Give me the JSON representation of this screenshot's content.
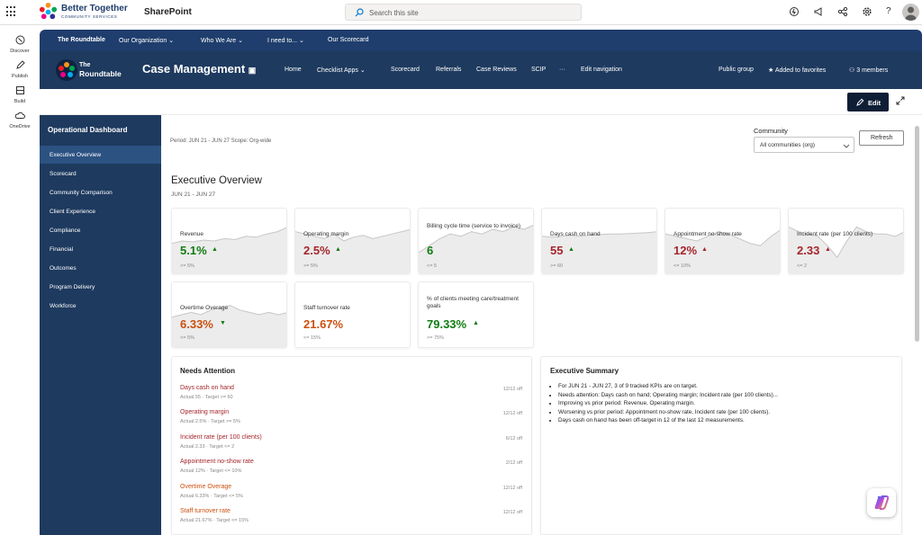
{
  "suite": {
    "brand_name": "Better Together",
    "brand_sub": "COMMUNITY SERVICES",
    "app_name": "SharePoint",
    "search_placeholder": "Search this site"
  },
  "rail": [
    {
      "label": "Discover",
      "icon": "compass-icon"
    },
    {
      "label": "Publish",
      "icon": "pen-icon"
    },
    {
      "label": "Build",
      "icon": "build-icon"
    },
    {
      "label": "OneDrive",
      "icon": "cloud-icon"
    }
  ],
  "hub_nav": [
    "The Roundtable",
    "Our Organization",
    "Who We Are",
    "I need to...",
    "Our Scorecard"
  ],
  "site": {
    "logo_line1": "The",
    "logo_line2": "Roundtable",
    "title": "Case Management",
    "nav": [
      "Home",
      "Checklist Apps",
      "Scorecard",
      "Referrals",
      "Case Reviews",
      "SCIP",
      "···",
      "Edit navigation"
    ],
    "public_group": "Public group",
    "favorites": "Added to favorites",
    "members": "3 members"
  },
  "command": {
    "edit": "Edit"
  },
  "dashboard_nav": {
    "title": "Operational Dashboard",
    "items": [
      "Executive Overview",
      "Scorecard",
      "Community Comparison",
      "Client Experience",
      "Compliance",
      "Financial",
      "Outcomes",
      "Program Delivery",
      "Workforce"
    ],
    "active_index": 0
  },
  "main": {
    "period": "Period: JUN 21 - JUN 27   Scope: Org-wide",
    "community_label": "Community",
    "community_value": "All communities (org)",
    "refresh": "Refresh",
    "title": "Executive Overview",
    "range": "JUN 21 - JUN 27"
  },
  "kpis": [
    {
      "name": "Revenue",
      "value": "5.1%",
      "target": ">= 5%",
      "trend": "up",
      "status": "good",
      "spark": [
        0.55,
        0.5,
        0.52,
        0.48,
        0.5,
        0.45,
        0.47,
        0.4,
        0.42,
        0.35,
        0.3,
        0.2
      ]
    },
    {
      "name": "Operating margin",
      "value": "2.5%",
      "target": ">= 5%",
      "trend": "up",
      "status": "bad",
      "spark": [
        0.3,
        0.35,
        0.4,
        0.45,
        0.35,
        0.5,
        0.42,
        0.38,
        0.45,
        0.4,
        0.35,
        0.3,
        0.25
      ]
    },
    {
      "name": "Billing cycle time (service to invoice)",
      "value": "6",
      "target": "<= 5",
      "trend": "none",
      "status": "good",
      "spark": [
        0.75,
        0.6,
        0.45,
        0.35,
        0.4,
        0.3,
        0.35,
        0.25,
        0.3,
        0.2,
        0.25,
        0.15
      ]
    },
    {
      "name": "Days cash on hand",
      "value": "55",
      "target": ">= 60",
      "trend": "up",
      "status": "bad",
      "spark": [
        0.4,
        0.42,
        0.4,
        0.38,
        0.4,
        0.37,
        0.36,
        0.35,
        0.35,
        0.34,
        0.33,
        0.32,
        0.3
      ]
    },
    {
      "name": "Appointment no-show rate",
      "value": "12%",
      "target": "<= 10%",
      "trend": "up",
      "status": "bad",
      "spark": [
        0.35,
        0.4,
        0.45,
        0.5,
        0.4,
        0.3,
        0.35,
        0.45,
        0.55,
        0.6,
        0.4,
        0.25
      ]
    },
    {
      "name": "Incident rate (per 100 clients)",
      "value": "2.33",
      "target": "<= 2",
      "trend": "up",
      "status": "bad",
      "spark": [
        0.2,
        0.3,
        0.35,
        0.4,
        0.6,
        0.85,
        0.5,
        0.2,
        0.3,
        0.35,
        0.35,
        0.4,
        0.3
      ]
    },
    {
      "name": "Overtime Overage",
      "value": "6.33%",
      "target": "<= 5%",
      "trend": "down",
      "status": "warn",
      "spark": [
        0.55,
        0.5,
        0.45,
        0.5,
        0.4,
        0.35,
        0.3,
        0.4,
        0.45,
        0.5,
        0.45,
        0.5,
        0.45
      ]
    },
    {
      "name": "Staff turnover rate",
      "value": "21.67%",
      "target": "<= 15%",
      "trend": "none",
      "status": "warn",
      "spark": []
    },
    {
      "name": "% of clients meeting care/treatment goals",
      "value": "79.33%",
      "target": ">= 75%",
      "trend": "up",
      "status": "good",
      "spark": []
    }
  ],
  "needs_attention": {
    "title": "Needs Attention",
    "items": [
      {
        "name": "Days cash on hand",
        "detail": "Actual 55 · Target >= 60",
        "count": "12/12 off",
        "status": "bad"
      },
      {
        "name": "Operating margin",
        "detail": "Actual 2.5% · Target >= 5%",
        "count": "12/12 off",
        "status": "bad"
      },
      {
        "name": "Incident rate (per 100 clients)",
        "detail": "Actual 2.33 · Target <= 2",
        "count": "6/12 off",
        "status": "bad"
      },
      {
        "name": "Appointment no-show rate",
        "detail": "Actual 12% · Target <= 10%",
        "count": "2/12 off",
        "status": "bad"
      },
      {
        "name": "Overtime Overage",
        "detail": "Actual 6.33% · Target <= 5%",
        "count": "12/12 off",
        "status": "warn"
      },
      {
        "name": "Staff turnover rate",
        "detail": "Actual 21.67% · Target <= 15%",
        "count": "12/12 off",
        "status": "warn"
      }
    ]
  },
  "summary": {
    "title": "Executive Summary",
    "bullets": [
      "For JUN 21 - JUN 27, 3 of 9 tracked KPIs are on target.",
      "Needs attention: Days cash on hand; Operating margin; Incident rate (per 100 clients)...",
      "Improving vs prior period: Revenue, Operating margin.",
      "Worsening vs prior period: Appointment no-show rate, Incident rate (per 100 clients).",
      "Days cash on hand has been off-target in 12 of the last 12 measurements."
    ]
  },
  "colors": {
    "navy": "#1e3a5f",
    "good": "#107c10",
    "bad": "#a4262c",
    "warn": "#ca5010"
  }
}
